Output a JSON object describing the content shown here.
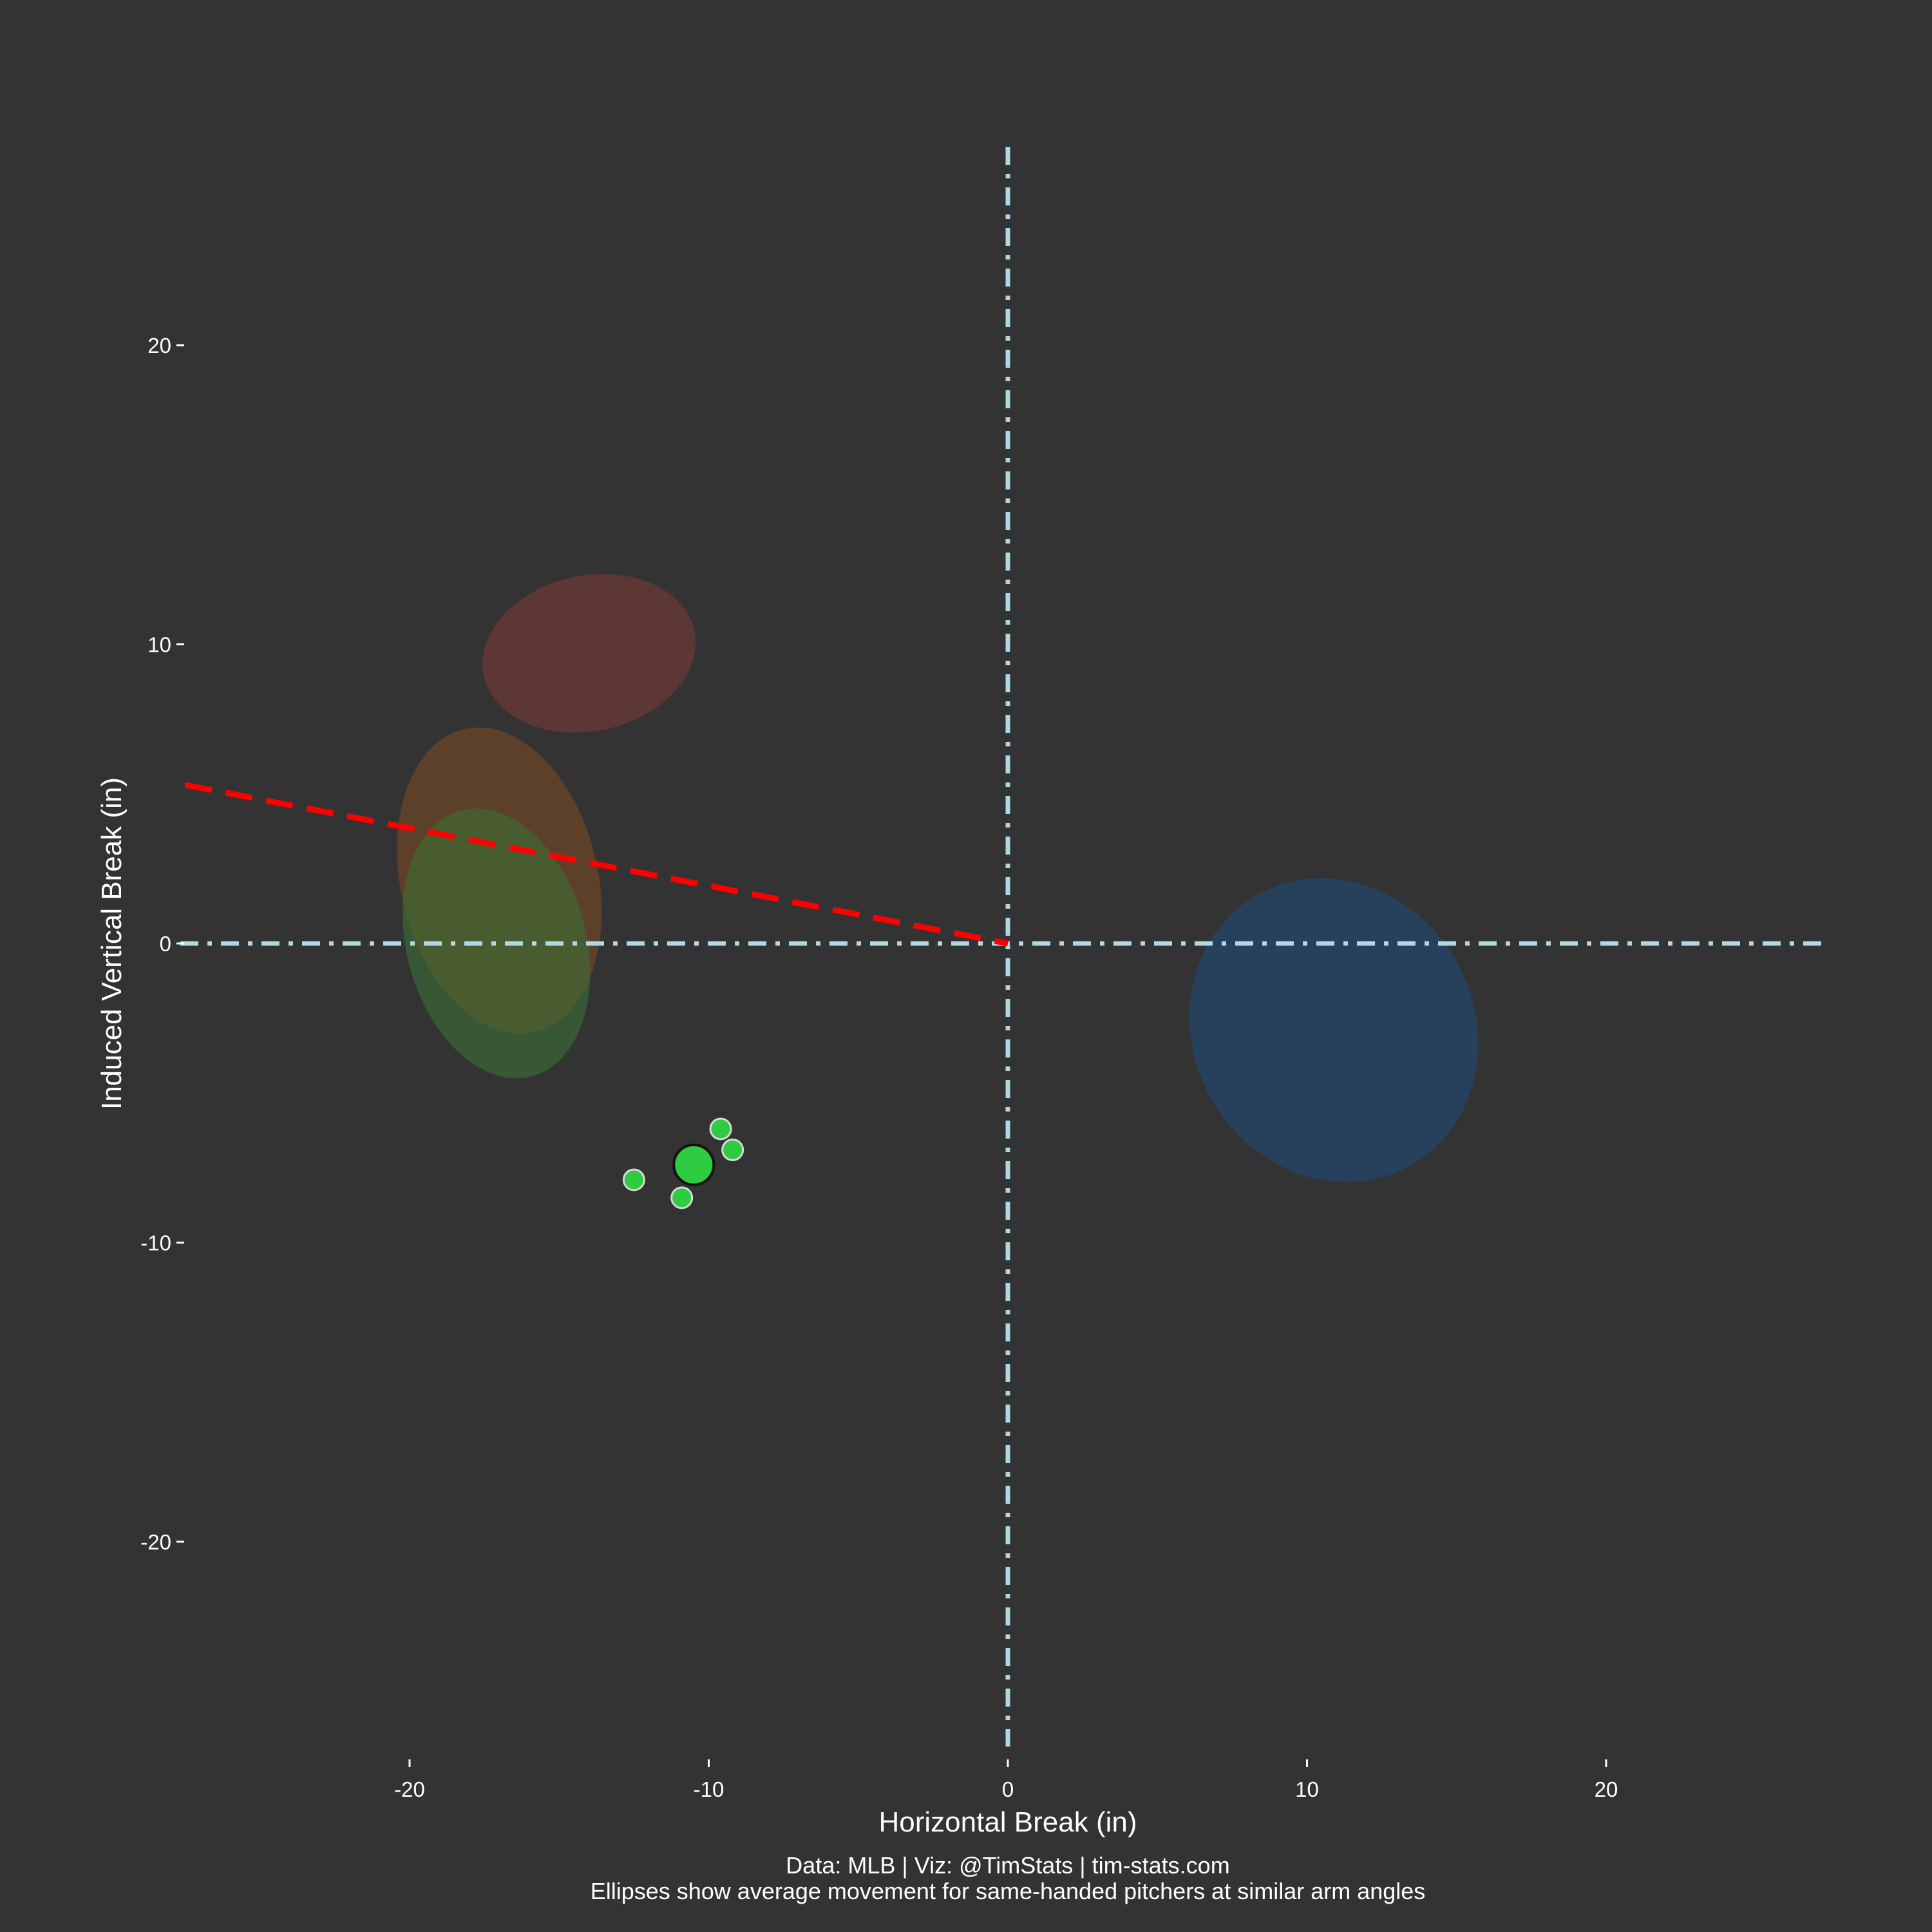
{
  "chart_data": {
    "type": "scatter",
    "xlabel": "Horizontal Break (in)",
    "ylabel": "Induced Vertical Break (in)",
    "xlim": [
      -27.5,
      27.5
    ],
    "ylim": [
      -27.5,
      27.5
    ],
    "x_ticks": [
      -20,
      -10,
      0,
      10,
      20
    ],
    "y_ticks": [
      20,
      10,
      0,
      -10,
      -20
    ],
    "x_tick_labels": [
      "-20",
      "-10",
      "0",
      "10",
      "20"
    ],
    "y_tick_labels": [
      "20",
      "10",
      "0",
      "-10",
      "-20"
    ],
    "grid": false,
    "background": "#333333",
    "reference_lines": {
      "vertical_x": 0,
      "horizontal_y": 0,
      "color": "#add8e6",
      "style": "dash-dot"
    },
    "arm_angle_line": {
      "color": "#ff0000",
      "style": "dashed",
      "from": [
        -27.5,
        5.3
      ],
      "to": [
        0,
        0
      ]
    },
    "ellipses": [
      {
        "cx": -14.0,
        "cy": 9.7,
        "rx": 3.6,
        "ry": 2.6,
        "angle": -12,
        "color": "#7a3a33",
        "opacity": 0.6
      },
      {
        "cx": -17.0,
        "cy": 2.1,
        "rx": 3.3,
        "ry": 5.2,
        "angle": -13,
        "color": "#7a4a25",
        "opacity": 0.6
      },
      {
        "cx": -17.1,
        "cy": 0.0,
        "rx": 3.0,
        "ry": 4.6,
        "angle": -15,
        "color": "#3c6f36",
        "opacity": 0.6
      },
      {
        "cx": 10.9,
        "cy": -2.9,
        "rx": 4.7,
        "ry": 5.2,
        "angle": -30,
        "color": "#24466a",
        "opacity": 0.75
      }
    ],
    "series": [
      {
        "color": "#2ecc40",
        "points": [
          {
            "x": -9.6,
            "y": -6.2
          },
          {
            "x": -9.2,
            "y": -6.9
          },
          {
            "x": -12.5,
            "y": -7.9
          },
          {
            "x": -10.9,
            "y": -8.5
          }
        ],
        "average": {
          "x": -10.5,
          "y": -7.4
        }
      }
    ]
  },
  "captions": {
    "line1": "Data: MLB | Viz: @TimStats | tim-stats.com",
    "line2": "Ellipses show average movement for same-handed pitchers at similar arm angles"
  }
}
